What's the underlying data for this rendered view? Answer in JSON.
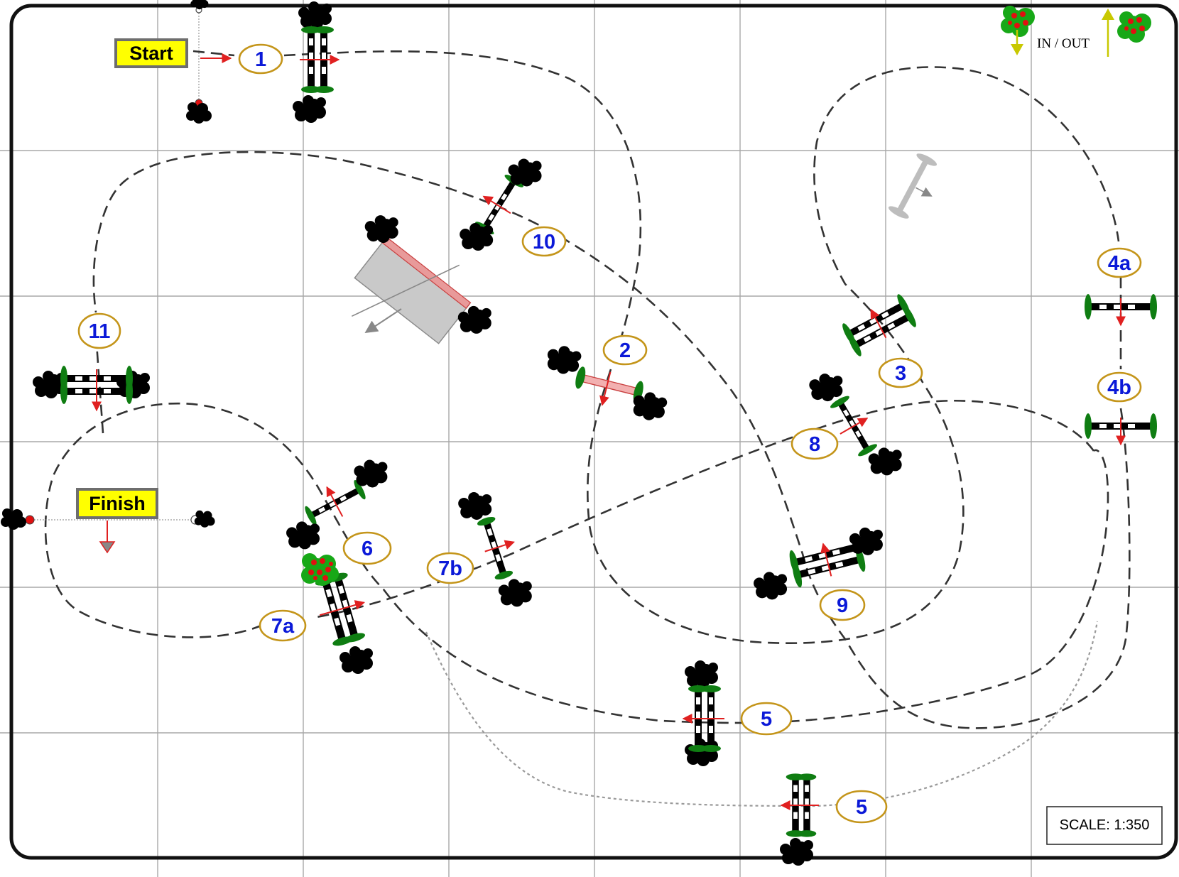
{
  "course": {
    "start_label": "Start",
    "finish_label": "Finish",
    "scale_text": "SCALE:  1:350",
    "in_out_text": "IN / OUT"
  },
  "jumps": [
    {
      "id": "1",
      "label": "1"
    },
    {
      "id": "2",
      "label": "2"
    },
    {
      "id": "3",
      "label": "3"
    },
    {
      "id": "4a",
      "label": "4a"
    },
    {
      "id": "4b",
      "label": "4b"
    },
    {
      "id": "5",
      "label": "5"
    },
    {
      "id": "5-alt",
      "label": "5"
    },
    {
      "id": "6",
      "label": "6"
    },
    {
      "id": "7a",
      "label": "7a"
    },
    {
      "id": "7b",
      "label": "7b"
    },
    {
      "id": "8",
      "label": "8"
    },
    {
      "id": "9",
      "label": "9"
    },
    {
      "id": "10",
      "label": "10"
    },
    {
      "id": "11",
      "label": "11"
    }
  ],
  "colors": {
    "label_text": "#0b19d8",
    "label_border": "#c4951a",
    "sign_fill": "#ffff00",
    "arrow": "#e02020",
    "grid": "#a8a8a8",
    "foliage": "#0f7d12"
  },
  "icons": {
    "bush": "shrub-icon",
    "flower_bush": "flower-bush-icon",
    "flag": "flag-icon",
    "gate_arrow": "entry-arrow-icon"
  }
}
